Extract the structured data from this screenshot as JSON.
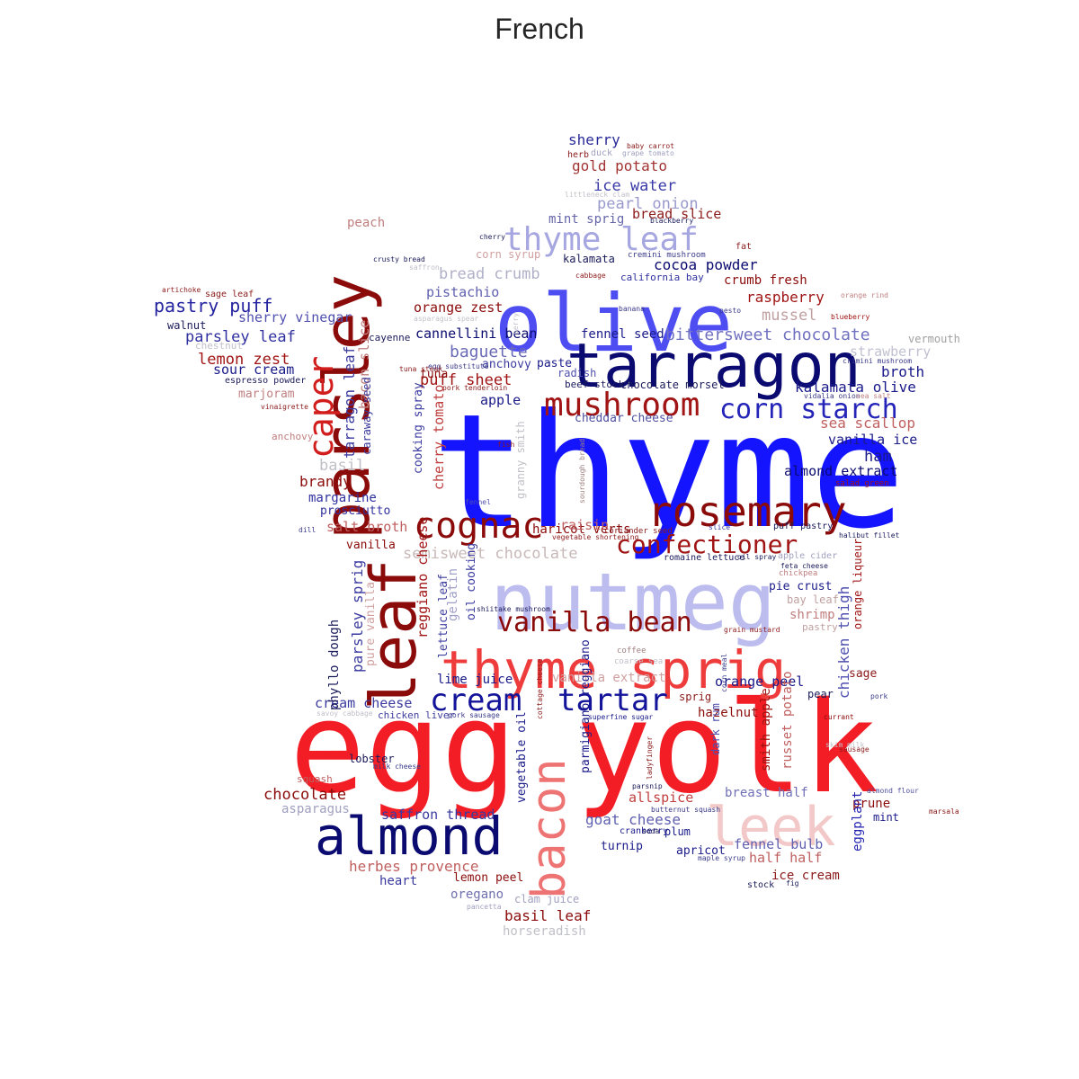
{
  "title": "French",
  "words": [
    {
      "text": "thyme",
      "color": "#1414ff"
    },
    {
      "text": "egg",
      "color": "#f21d25"
    },
    {
      "text": "yolk",
      "color": "#f21d25"
    },
    {
      "text": "olive",
      "color": "#4d4df2"
    },
    {
      "text": "tarragon",
      "color": "#0a0a70"
    },
    {
      "text": "nutmeg",
      "color": "#bcbcee"
    },
    {
      "text": "parsley",
      "color": "#8b0b0b"
    },
    {
      "text": "leaf",
      "color": "#8b0b0b"
    },
    {
      "text": "almond",
      "color": "#0a0a70"
    },
    {
      "text": "bacon",
      "color": "#ee7373"
    },
    {
      "text": "leek",
      "color": "#f2c8c8"
    },
    {
      "text": "rosemary",
      "color": "#8b0b0b"
    },
    {
      "text": "thyme sprig",
      "color": "#ee3b3b"
    },
    {
      "text": "cognac",
      "color": "#8b0b0b"
    },
    {
      "text": "caper",
      "color": "#d21d1d"
    },
    {
      "text": "mushroom",
      "color": "#a01414"
    },
    {
      "text": "corn starch",
      "color": "#2424b8"
    },
    {
      "text": "thyme leaf",
      "color": "#a6a6e0"
    },
    {
      "text": "confectioner",
      "color": "#a01414"
    },
    {
      "text": "vanilla bean",
      "color": "#8b0b0b"
    },
    {
      "text": "cream",
      "color": "#14149a"
    },
    {
      "text": "tartar",
      "color": "#14149a"
    },
    {
      "text": "sherry",
      "color": "#2a2a9a"
    },
    {
      "text": "gold potato",
      "color": "#a33333"
    },
    {
      "text": "ice water",
      "color": "#3a3aa8"
    },
    {
      "text": "pearl onion",
      "color": "#9999cc"
    },
    {
      "text": "mint sprig",
      "color": "#6666aa"
    },
    {
      "text": "bread slice",
      "color": "#8b1a1a"
    },
    {
      "text": "pastry puff",
      "color": "#2424a0"
    },
    {
      "text": "sherry vinegar",
      "color": "#5050b0"
    },
    {
      "text": "parsley leaf",
      "color": "#3030a0"
    },
    {
      "text": "lemon zest",
      "color": "#a01414"
    },
    {
      "text": "sour cream",
      "color": "#1a1a8a"
    },
    {
      "text": "marjoram",
      "color": "#c08080"
    },
    {
      "text": "bread crumb",
      "color": "#b0b0c8"
    },
    {
      "text": "pistachio",
      "color": "#6060b0"
    },
    {
      "text": "orange zest",
      "color": "#8b0b0b"
    },
    {
      "text": "cocoa powder",
      "color": "#0a0a70"
    },
    {
      "text": "crumb fresh",
      "color": "#8b0b0b"
    },
    {
      "text": "raspberry",
      "color": "#a01414"
    },
    {
      "text": "mussel",
      "color": "#c0a0a0"
    },
    {
      "text": "bittersweet chocolate",
      "color": "#7070c0"
    },
    {
      "text": "strawberry",
      "color": "#c0c0d0"
    },
    {
      "text": "broth",
      "color": "#1a1a8a"
    },
    {
      "text": "kalamata olive",
      "color": "#1a1a8a"
    },
    {
      "text": "sea scallop",
      "color": "#c06060"
    },
    {
      "text": "vanilla ice",
      "color": "#1a1a8a"
    },
    {
      "text": "ham",
      "color": "#1a1a8a"
    },
    {
      "text": "almond extract",
      "color": "#0a0a70"
    },
    {
      "text": "cannellini bean",
      "color": "#0a0a70"
    },
    {
      "text": "baguette",
      "color": "#6a6ab8"
    },
    {
      "text": "puff sheet",
      "color": "#a01414"
    },
    {
      "text": "apple",
      "color": "#1a1a8a"
    },
    {
      "text": "fennel seed",
      "color": "#1a1a8a"
    },
    {
      "text": "chocolate morsel",
      "color": "#1a1a5a"
    },
    {
      "text": "cheddar cheese",
      "color": "#5050a0"
    },
    {
      "text": "basil",
      "color": "#c0c0c8"
    },
    {
      "text": "brandy",
      "color": "#8b0b0b"
    },
    {
      "text": "margarine",
      "color": "#3030a0"
    },
    {
      "text": "prosciutto",
      "color": "#3030a0"
    },
    {
      "text": "salt broth",
      "color": "#c06060"
    },
    {
      "text": "semisweet chocolate",
      "color": "#c8b8b8"
    },
    {
      "text": "haricot verts",
      "color": "#8b0b0b"
    },
    {
      "text": "raisin",
      "color": "#c06060"
    },
    {
      "text": "vanilla",
      "color": "#8b0b0b"
    },
    {
      "text": "pie crust",
      "color": "#1a1a8a"
    },
    {
      "text": "shrimp",
      "color": "#c08080"
    },
    {
      "text": "bay leaf",
      "color": "#c0a0a0"
    },
    {
      "text": "pastry",
      "color": "#c0a0a0"
    },
    {
      "text": "orange peel",
      "color": "#1a1a8a"
    },
    {
      "text": "sage",
      "color": "#8b1a1a"
    },
    {
      "text": "pear",
      "color": "#1a1a5a"
    },
    {
      "text": "sprig",
      "color": "#8b1a1a"
    },
    {
      "text": "hazelnut",
      "color": "#8b0b0b"
    },
    {
      "text": "lime juice",
      "color": "#1a1a8a"
    },
    {
      "text": "vanilla extract",
      "color": "#d0a0a0"
    },
    {
      "text": "cream cheese",
      "color": "#3a3aa0"
    },
    {
      "text": "chicken liver",
      "color": "#4040a0"
    },
    {
      "text": "chocolate",
      "color": "#8b0b0b"
    },
    {
      "text": "asparagus",
      "color": "#a0a0c0"
    },
    {
      "text": "lobster",
      "color": "#1a1a5a"
    },
    {
      "text": "saffron thread",
      "color": "#3a3aa0"
    },
    {
      "text": "goat cheese",
      "color": "#6060b0"
    },
    {
      "text": "allspice",
      "color": "#c04040"
    },
    {
      "text": "breast half",
      "color": "#7070b8"
    },
    {
      "text": "prune",
      "color": "#8b0b0b"
    },
    {
      "text": "mint",
      "color": "#1a1a8a"
    },
    {
      "text": "turnip",
      "color": "#1a1a8a"
    },
    {
      "text": "plum",
      "color": "#1a1a8a"
    },
    {
      "text": "apricot",
      "color": "#1a1a8a"
    },
    {
      "text": "fennel bulb",
      "color": "#6060b0"
    },
    {
      "text": "half half",
      "color": "#c06060"
    },
    {
      "text": "ice cream",
      "color": "#8b1a1a"
    },
    {
      "text": "herbes provence",
      "color": "#c06060"
    },
    {
      "text": "lemon peel",
      "color": "#8b0b0b"
    },
    {
      "text": "heart",
      "color": "#3a3aa0"
    },
    {
      "text": "oregano",
      "color": "#7070b0"
    },
    {
      "text": "clam juice",
      "color": "#a0a0c0"
    },
    {
      "text": "basil leaf",
      "color": "#8b0b0b"
    },
    {
      "text": "horseradish",
      "color": "#c0c0c8"
    },
    {
      "text": "stock",
      "color": "#1a1a5a"
    },
    {
      "text": "peach",
      "color": "#c08080"
    },
    {
      "text": "walnut",
      "color": "#1a1a5a"
    },
    {
      "text": "corn syrup",
      "color": "#d0a0a0"
    },
    {
      "text": "kalamata",
      "color": "#1a1a5a"
    },
    {
      "text": "california bay",
      "color": "#3030a0"
    },
    {
      "text": "cremini mushroom",
      "color": "#3a3a8a"
    },
    {
      "text": "pesto",
      "color": "#3a3a8a"
    },
    {
      "text": "blueberry",
      "color": "#a01414"
    },
    {
      "text": "orange rind",
      "color": "#c08080"
    },
    {
      "text": "vermouth",
      "color": "#a0a0a0"
    },
    {
      "text": "crimini mushroom",
      "color": "#3a3a8a"
    },
    {
      "text": "vidalia onion",
      "color": "#3a3a8a"
    },
    {
      "text": "sea salt",
      "color": "#c08080"
    },
    {
      "text": "cayenne",
      "color": "#1a1a5a"
    },
    {
      "text": "tuna",
      "color": "#8b0b0b"
    },
    {
      "text": "anchovy",
      "color": "#3a3aa0"
    },
    {
      "text": "paste",
      "color": "#1a1a8a"
    },
    {
      "text": "radish",
      "color": "#5050b0"
    },
    {
      "text": "beef stock",
      "color": "#1a1a5a"
    },
    {
      "text": "tarragon leaf",
      "color": "#3a3aa0"
    },
    {
      "text": "bacon slice",
      "color": "#c08080"
    },
    {
      "text": "caraway seed",
      "color": "#3a3aa0"
    },
    {
      "text": "cooking spray",
      "color": "#3a3aa0"
    },
    {
      "text": "cherry tomato",
      "color": "#c04040"
    },
    {
      "text": "granny smith",
      "color": "#c0c0c8"
    },
    {
      "text": "reggiano cheese",
      "color": "#a01414"
    },
    {
      "text": "lettuce leaf",
      "color": "#4040a0"
    },
    {
      "text": "gelatin",
      "color": "#a0a0c8"
    },
    {
      "text": "oil cooking",
      "color": "#3a3aa0"
    },
    {
      "text": "parsley sprig",
      "color": "#3a3aa0"
    },
    {
      "text": "pure vanilla",
      "color": "#d0a0a0"
    },
    {
      "text": "phyllo dough",
      "color": "#1a1a5a"
    },
    {
      "text": "parmigiano reggiano",
      "color": "#1a1a8a"
    },
    {
      "text": "vegetable oil",
      "color": "#1a1a8a"
    },
    {
      "text": "chicken thigh",
      "color": "#5050b0"
    },
    {
      "text": "orange liqueur",
      "color": "#a01414"
    },
    {
      "text": "russet potato",
      "color": "#c06060"
    },
    {
      "text": "smith apple",
      "color": "#a01414"
    },
    {
      "text": "dark rum",
      "color": "#5050b0"
    },
    {
      "text": "eggplant",
      "color": "#2424b0"
    },
    {
      "text": "anchovy",
      "color": "#c08080"
    },
    {
      "text": "artichoke",
      "color": "#8b1a1a"
    },
    {
      "text": "sage leaf",
      "color": "#8b1a1a"
    },
    {
      "text": "chestnut",
      "color": "#c0c0c8"
    },
    {
      "text": "espresso powder",
      "color": "#1a1a5a"
    },
    {
      "text": "vinaigrette",
      "color": "#8b1a1a"
    },
    {
      "text": "dill",
      "color": "#3a3a8a"
    },
    {
      "text": "squash",
      "color": "#c06060"
    },
    {
      "text": "savoy cabbage",
      "color": "#c0c0c8"
    },
    {
      "text": "milk cheese",
      "color": "#3a3a8a"
    },
    {
      "text": "currant",
      "color": "#8b0b0b"
    },
    {
      "text": "skim milk",
      "color": "#c0c0c8"
    },
    {
      "text": "sausage",
      "color": "#8b1a1a"
    },
    {
      "text": "pork",
      "color": "#3a3a8a"
    },
    {
      "text": "almond flour",
      "color": "#5050a0"
    },
    {
      "text": "marsala",
      "color": "#8b1a1a"
    },
    {
      "text": "halibut fillet",
      "color": "#1a1a5a"
    },
    {
      "text": "salad green",
      "color": "#a01414"
    },
    {
      "text": "apple cider",
      "color": "#a0a0c0"
    },
    {
      "text": "feta cheese",
      "color": "#1a1a5a"
    },
    {
      "text": "chickpea",
      "color": "#c08080"
    },
    {
      "text": "puff pastry",
      "color": "#1a1a5a"
    },
    {
      "text": "slice",
      "color": "#3a3aa0"
    },
    {
      "text": "oil spray",
      "color": "#1a1a5a"
    },
    {
      "text": "coriander seed",
      "color": "#8b1a1a"
    },
    {
      "text": "romaine lettuce",
      "color": "#1a1a5a"
    },
    {
      "text": "vegetable shortening",
      "color": "#8b1a1a"
    },
    {
      "text": "grain mustard",
      "color": "#8b1a1a"
    },
    {
      "text": "corn meal",
      "color": "#3a3a8a"
    },
    {
      "text": "coffee",
      "color": "#a08080"
    },
    {
      "text": "coarse sea",
      "color": "#c0c0c8"
    },
    {
      "text": "shiitake mushroom",
      "color": "#1a1a5a"
    },
    {
      "text": "cottage cheese",
      "color": "#8b1a1a"
    },
    {
      "text": "superfine sugar",
      "color": "#1a1a8a"
    },
    {
      "text": "ladyfinger",
      "color": "#8b1a1a"
    },
    {
      "text": "parsnip",
      "color": "#1a1a5a"
    },
    {
      "text": "butternut squash",
      "color": "#3a3a8a"
    },
    {
      "text": "cranberry",
      "color": "#1a1a8a"
    },
    {
      "text": "soda",
      "color": "#1a1a5a"
    },
    {
      "text": "maple syrup",
      "color": "#3a3a8a"
    },
    {
      "text": "fig",
      "color": "#1a1a5a"
    },
    {
      "text": "pancetta",
      "color": "#a0a0c0"
    },
    {
      "text": "pork sausage",
      "color": "#3a3a8a"
    },
    {
      "text": "fennel",
      "color": "#5050b0"
    },
    {
      "text": "sourdough bread",
      "color": "#a08080"
    },
    {
      "text": "fish",
      "color": "#8b1a1a"
    },
    {
      "text": "egg substitute",
      "color": "#3a3a8a"
    },
    {
      "text": "pork tenderloin",
      "color": "#8b1a1a"
    },
    {
      "text": "tuna steak",
      "color": "#8b1a1a"
    },
    {
      "text": "asparagus spear",
      "color": "#c0c0c8"
    },
    {
      "text": "saffron",
      "color": "#c0c0c8"
    },
    {
      "text": "crusty bread",
      "color": "#1a1a5a"
    },
    {
      "text": "cherry",
      "color": "#1a1a5a"
    },
    {
      "text": "cabbage",
      "color": "#8b1a1a"
    },
    {
      "text": "banana",
      "color": "#3a3a8a"
    },
    {
      "text": "berry",
      "color": "#c0c0c8"
    },
    {
      "text": "fat",
      "color": "#8b1a1a"
    },
    {
      "text": "blackberry",
      "color": "#1a1a5a"
    },
    {
      "text": "littleneck clam",
      "color": "#c0c0c8"
    },
    {
      "text": "herb",
      "color": "#8b1a1a"
    },
    {
      "text": "duck",
      "color": "#a0a0c0"
    },
    {
      "text": "baby carrot",
      "color": "#8b1a1a"
    },
    {
      "text": "grape tomato",
      "color": "#a0a0c0"
    }
  ]
}
